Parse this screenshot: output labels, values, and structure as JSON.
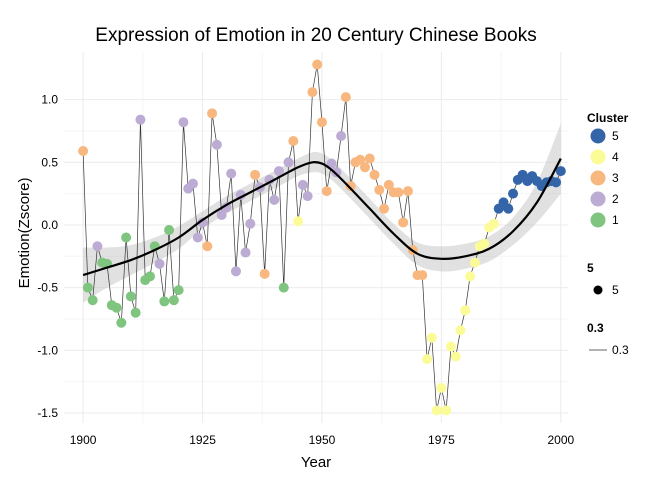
{
  "chart_data": {
    "type": "scatter",
    "title": "Expression of Emotion in 20 Century Chinese Books",
    "xlabel": "Year",
    "ylabel": "Emotion(Zscore)",
    "xlim": [
      1896,
      2001.5
    ],
    "ylim": [
      -1.58,
      1.38
    ],
    "xticks": [
      1900,
      1925,
      1950,
      1975,
      2000
    ],
    "yticks": [
      -1.5,
      -1.0,
      -0.5,
      0.0,
      0.5,
      1.0
    ],
    "ytick_labels": [
      "-1.5",
      "-1.0",
      "-0.5",
      "0.0",
      "0.5",
      "1.0"
    ],
    "grid": true,
    "legend_position": "right",
    "legend": {
      "cluster_title": "Cluster",
      "size_title": "5",
      "size_label": "5",
      "line_title": "0.3",
      "line_label": "0.3"
    },
    "clusters": [
      {
        "name": "5",
        "color": "#3465a8"
      },
      {
        "name": "4",
        "color": "#fbfb97"
      },
      {
        "name": "3",
        "color": "#f7b77e"
      },
      {
        "name": "2",
        "color": "#bcabd3"
      },
      {
        "name": "1",
        "color": "#7fc47f"
      }
    ],
    "points": [
      {
        "x": 1900,
        "y": 0.59,
        "c": "3"
      },
      {
        "x": 1901,
        "y": -0.5,
        "c": "1"
      },
      {
        "x": 1902,
        "y": -0.6,
        "c": "1"
      },
      {
        "x": 1903,
        "y": -0.17,
        "c": "2"
      },
      {
        "x": 1904,
        "y": -0.3,
        "c": "1"
      },
      {
        "x": 1905,
        "y": -0.31,
        "c": "1"
      },
      {
        "x": 1906,
        "y": -0.64,
        "c": "1"
      },
      {
        "x": 1907,
        "y": -0.66,
        "c": "1"
      },
      {
        "x": 1908,
        "y": -0.78,
        "c": "1"
      },
      {
        "x": 1909,
        "y": -0.1,
        "c": "1"
      },
      {
        "x": 1910,
        "y": -0.57,
        "c": "1"
      },
      {
        "x": 1911,
        "y": -0.7,
        "c": "1"
      },
      {
        "x": 1912,
        "y": 0.84,
        "c": "2"
      },
      {
        "x": 1913,
        "y": -0.44,
        "c": "1"
      },
      {
        "x": 1914,
        "y": -0.41,
        "c": "1"
      },
      {
        "x": 1915,
        "y": -0.17,
        "c": "1"
      },
      {
        "x": 1916,
        "y": -0.31,
        "c": "2"
      },
      {
        "x": 1917,
        "y": -0.61,
        "c": "1"
      },
      {
        "x": 1918,
        "y": -0.04,
        "c": "1"
      },
      {
        "x": 1919,
        "y": -0.6,
        "c": "1"
      },
      {
        "x": 1920,
        "y": -0.52,
        "c": "1"
      },
      {
        "x": 1921,
        "y": 0.82,
        "c": "2"
      },
      {
        "x": 1922,
        "y": 0.29,
        "c": "2"
      },
      {
        "x": 1923,
        "y": 0.33,
        "c": "2"
      },
      {
        "x": 1924,
        "y": -0.1,
        "c": "2"
      },
      {
        "x": 1925,
        "y": 0.02,
        "c": "2"
      },
      {
        "x": 1926,
        "y": -0.17,
        "c": "3"
      },
      {
        "x": 1927,
        "y": 0.89,
        "c": "3"
      },
      {
        "x": 1928,
        "y": 0.64,
        "c": "2"
      },
      {
        "x": 1929,
        "y": 0.08,
        "c": "2"
      },
      {
        "x": 1930,
        "y": 0.14,
        "c": "2"
      },
      {
        "x": 1931,
        "y": 0.41,
        "c": "2"
      },
      {
        "x": 1932,
        "y": -0.37,
        "c": "2"
      },
      {
        "x": 1933,
        "y": 0.24,
        "c": "2"
      },
      {
        "x": 1934,
        "y": -0.22,
        "c": "2"
      },
      {
        "x": 1935,
        "y": 0.01,
        "c": "2"
      },
      {
        "x": 1936,
        "y": 0.4,
        "c": "3"
      },
      {
        "x": 1937,
        "y": 0.3,
        "c": "2"
      },
      {
        "x": 1938,
        "y": -0.39,
        "c": "3"
      },
      {
        "x": 1939,
        "y": 0.36,
        "c": "2"
      },
      {
        "x": 1940,
        "y": 0.2,
        "c": "2"
      },
      {
        "x": 1941,
        "y": 0.43,
        "c": "2"
      },
      {
        "x": 1942,
        "y": -0.5,
        "c": "1"
      },
      {
        "x": 1943,
        "y": 0.5,
        "c": "2"
      },
      {
        "x": 1944,
        "y": 0.67,
        "c": "3"
      },
      {
        "x": 1945,
        "y": 0.03,
        "c": "4"
      },
      {
        "x": 1946,
        "y": 0.32,
        "c": "2"
      },
      {
        "x": 1947,
        "y": 0.23,
        "c": "2"
      },
      {
        "x": 1948,
        "y": 1.06,
        "c": "3"
      },
      {
        "x": 1949,
        "y": 1.28,
        "c": "3"
      },
      {
        "x": 1950,
        "y": 0.82,
        "c": "3"
      },
      {
        "x": 1951,
        "y": 0.27,
        "c": "3"
      },
      {
        "x": 1952,
        "y": 0.49,
        "c": "2"
      },
      {
        "x": 1953,
        "y": 0.42,
        "c": "2"
      },
      {
        "x": 1954,
        "y": 0.71,
        "c": "2"
      },
      {
        "x": 1955,
        "y": 1.02,
        "c": "3"
      },
      {
        "x": 1956,
        "y": 0.31,
        "c": "3"
      },
      {
        "x": 1957,
        "y": 0.5,
        "c": "3"
      },
      {
        "x": 1958,
        "y": 0.52,
        "c": "3"
      },
      {
        "x": 1959,
        "y": 0.46,
        "c": "3"
      },
      {
        "x": 1960,
        "y": 0.53,
        "c": "3"
      },
      {
        "x": 1961,
        "y": 0.4,
        "c": "3"
      },
      {
        "x": 1962,
        "y": 0.28,
        "c": "3"
      },
      {
        "x": 1963,
        "y": 0.13,
        "c": "3"
      },
      {
        "x": 1964,
        "y": 0.32,
        "c": "3"
      },
      {
        "x": 1965,
        "y": 0.26,
        "c": "3"
      },
      {
        "x": 1966,
        "y": 0.26,
        "c": "3"
      },
      {
        "x": 1967,
        "y": 0.02,
        "c": "3"
      },
      {
        "x": 1968,
        "y": 0.27,
        "c": "3"
      },
      {
        "x": 1969,
        "y": -0.2,
        "c": "3"
      },
      {
        "x": 1970,
        "y": -0.4,
        "c": "3"
      },
      {
        "x": 1971,
        "y": -0.4,
        "c": "3"
      },
      {
        "x": 1972,
        "y": -1.07,
        "c": "4"
      },
      {
        "x": 1973,
        "y": -0.9,
        "c": "4"
      },
      {
        "x": 1974,
        "y": -1.48,
        "c": "4"
      },
      {
        "x": 1975,
        "y": -1.3,
        "c": "4"
      },
      {
        "x": 1976,
        "y": -1.48,
        "c": "4"
      },
      {
        "x": 1977,
        "y": -0.97,
        "c": "4"
      },
      {
        "x": 1978,
        "y": -1.05,
        "c": "4"
      },
      {
        "x": 1979,
        "y": -0.84,
        "c": "4"
      },
      {
        "x": 1980,
        "y": -0.68,
        "c": "4"
      },
      {
        "x": 1981,
        "y": -0.41,
        "c": "4"
      },
      {
        "x": 1982,
        "y": -0.3,
        "c": "4"
      },
      {
        "x": 1983,
        "y": -0.17,
        "c": "4"
      },
      {
        "x": 1984,
        "y": -0.15,
        "c": "4"
      },
      {
        "x": 1985,
        "y": -0.02,
        "c": "4"
      },
      {
        "x": 1986,
        "y": 0.01,
        "c": "4"
      },
      {
        "x": 1987,
        "y": 0.13,
        "c": "5"
      },
      {
        "x": 1988,
        "y": 0.18,
        "c": "5"
      },
      {
        "x": 1989,
        "y": 0.13,
        "c": "5"
      },
      {
        "x": 1990,
        "y": 0.25,
        "c": "5"
      },
      {
        "x": 1991,
        "y": 0.36,
        "c": "5"
      },
      {
        "x": 1992,
        "y": 0.4,
        "c": "5"
      },
      {
        "x": 1993,
        "y": 0.35,
        "c": "5"
      },
      {
        "x": 1994,
        "y": 0.39,
        "c": "5"
      },
      {
        "x": 1995,
        "y": 0.35,
        "c": "5"
      },
      {
        "x": 1996,
        "y": 0.31,
        "c": "5"
      },
      {
        "x": 1997,
        "y": 0.34,
        "c": "5"
      },
      {
        "x": 1998,
        "y": 0.35,
        "c": "5"
      },
      {
        "x": 1999,
        "y": 0.34,
        "c": "5"
      },
      {
        "x": 2000,
        "y": 0.43,
        "c": "5"
      }
    ],
    "smooth": {
      "x": [
        1900,
        1905,
        1910,
        1915,
        1920,
        1925,
        1930,
        1935,
        1940,
        1945,
        1948,
        1950,
        1952,
        1955,
        1960,
        1965,
        1970,
        1975,
        1980,
        1985,
        1990,
        1995,
        2000
      ],
      "y": [
        -0.4,
        -0.34,
        -0.28,
        -0.2,
        -0.1,
        0.04,
        0.16,
        0.26,
        0.36,
        0.46,
        0.5,
        0.49,
        0.44,
        0.33,
        0.13,
        -0.07,
        -0.23,
        -0.27,
        -0.25,
        -0.19,
        -0.05,
        0.18,
        0.53
      ],
      "lower": [
        -0.62,
        -0.5,
        -0.4,
        -0.3,
        -0.19,
        -0.03,
        0.09,
        0.19,
        0.29,
        0.39,
        0.42,
        0.41,
        0.36,
        0.25,
        0.05,
        -0.15,
        -0.32,
        -0.37,
        -0.35,
        -0.29,
        -0.16,
        0.02,
        0.25
      ],
      "upper": [
        -0.18,
        -0.18,
        -0.16,
        -0.1,
        -0.01,
        0.11,
        0.23,
        0.33,
        0.43,
        0.53,
        0.58,
        0.57,
        0.52,
        0.41,
        0.21,
        0.01,
        -0.14,
        -0.17,
        -0.15,
        -0.09,
        0.06,
        0.34,
        0.81
      ]
    }
  }
}
